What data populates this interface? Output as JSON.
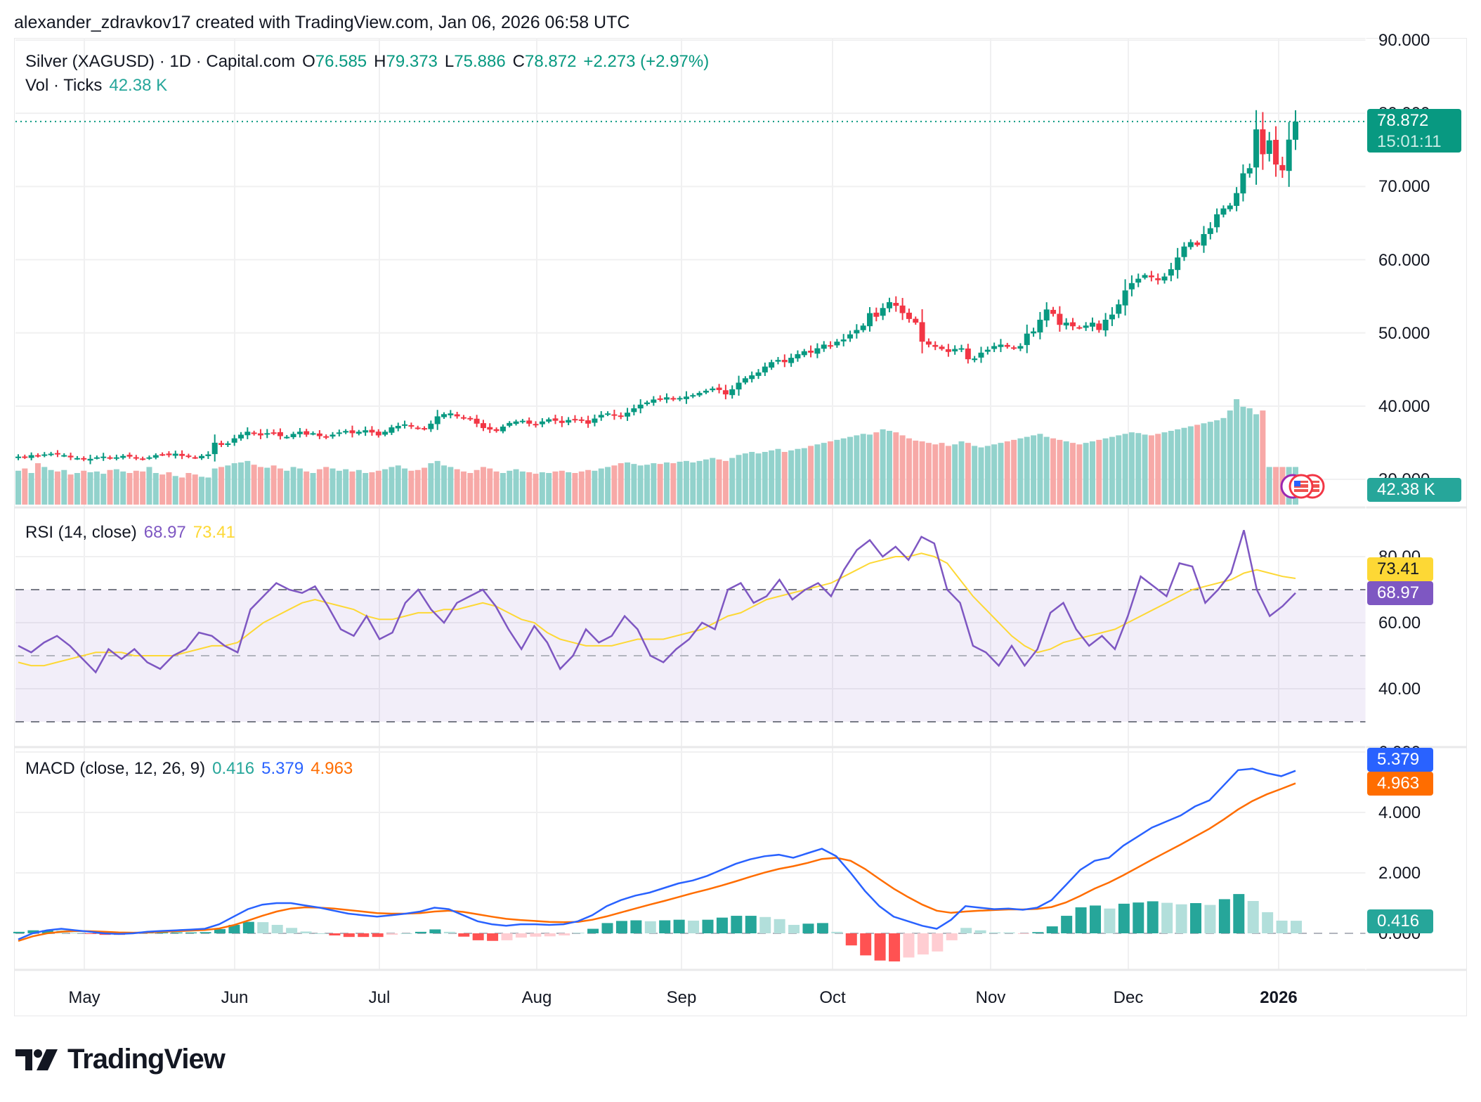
{
  "attribution": "alexander_zdravkov17 created with TradingView.com, Jan 06, 2026 06:58 UTC",
  "symbol_legend": {
    "title": "Silver (XAGUSD) · 1D · Capital.com",
    "o_label": "O",
    "o_value": "76.585",
    "h_label": "H",
    "h_value": "79.373",
    "l_label": "L",
    "l_value": "75.886",
    "c_label": "C",
    "c_value": "78.872",
    "change": "+2.273 (+2.97%)"
  },
  "volume_legend": {
    "title": "Vol · Ticks",
    "value": "42.38 K"
  },
  "rsi_legend": {
    "title": "RSI (14, close)",
    "rsi": "68.97",
    "ma": "73.41"
  },
  "macd_legend": {
    "title": "MACD (close, 12, 26, 9)",
    "hist": "0.416",
    "macd": "5.379",
    "signal": "4.963"
  },
  "price_axis": [
    "90.000",
    "80.000",
    "70.000",
    "60.000",
    "50.000",
    "40.000",
    "30.000"
  ],
  "rsi_axis": [
    "80.00",
    "60.00",
    "40.00"
  ],
  "macd_axis": [
    "6.000",
    "4.000",
    "2.000",
    "0.000"
  ],
  "tags": {
    "last_price": "78.872",
    "countdown": "15:01:11",
    "volume": "42.38 K",
    "rsi_ma": "73.41",
    "rsi": "68.97",
    "macd": "5.379",
    "signal": "4.963",
    "hist": "0.416"
  },
  "time_axis": [
    "May",
    "Jun",
    "Jul",
    "Aug",
    "Sep",
    "Oct",
    "Nov",
    "Dec",
    "2026"
  ],
  "logo_text": "TradingView",
  "colors": {
    "up": "#089981",
    "down": "#f23645",
    "vol_up": "#92d2cc",
    "vol_down": "#f7a9a7",
    "rsi": "#7e57c2",
    "rsi_ma": "#fdd835",
    "rsi_band": "#7e57c2",
    "macd": "#2962ff",
    "signal": "#ff6d00",
    "hist_up_strong": "#26a69a",
    "hist_up_weak": "#b2dfdb",
    "hist_down_strong": "#ff5252",
    "hist_down_weak": "#ffcdd2"
  },
  "chart_data": [
    {
      "type": "candlestick",
      "title": "Silver (XAGUSD) · 1D · Capital.com",
      "ylim": [
        30,
        90
      ],
      "last": 78.872,
      "close": [
        33.1,
        33.0,
        33.3,
        33.2,
        33.4,
        33.5,
        33.4,
        33.3,
        33.0,
        32.9,
        32.7,
        32.8,
        33.0,
        33.1,
        32.9,
        33.0,
        33.2,
        33.1,
        32.9,
        32.8,
        33.0,
        33.3,
        33.4,
        33.3,
        33.5,
        33.2,
        33.1,
        33.0,
        33.2,
        33.4,
        35.0,
        34.7,
        34.9,
        35.6,
        36.1,
        36.5,
        36.2,
        36.0,
        36.3,
        36.4,
        35.9,
        35.8,
        36.2,
        36.5,
        36.1,
        36.3,
        35.9,
        35.7,
        36.1,
        36.4,
        36.6,
        36.3,
        36.5,
        36.7,
        36.4,
        36.0,
        36.5,
        37.1,
        37.3,
        37.5,
        37.2,
        37.0,
        36.9,
        37.6,
        38.6,
        38.9,
        39.0,
        38.6,
        38.4,
        38.2,
        37.6,
        37.0,
        36.8,
        36.6,
        37.2,
        37.7,
        37.9,
        38.0,
        37.6,
        37.4,
        37.9,
        38.2,
        38.0,
        37.7,
        38.1,
        38.2,
        38.0,
        37.6,
        38.3,
        38.8,
        39.0,
        38.7,
        38.6,
        39.1,
        39.7,
        40.2,
        40.5,
        40.9,
        41.0,
        41.2,
        40.9,
        41.1,
        41.3,
        41.5,
        41.8,
        42.1,
        42.4,
        42.2,
        41.6,
        42.3,
        43.2,
        43.8,
        44.2,
        44.6,
        45.4,
        46.0,
        46.3,
        46.0,
        46.6,
        47.1,
        47.5,
        47.3,
        47.9,
        48.4,
        48.3,
        48.8,
        49.1,
        49.8,
        50.4,
        51.0,
        52.7,
        52.2,
        53.4,
        54.2,
        53.7,
        52.7,
        51.9,
        51.4,
        48.8,
        48.4,
        48.1,
        47.8,
        47.4,
        47.8,
        47.9,
        46.4,
        46.5,
        47.3,
        47.7,
        48.2,
        48.4,
        48.1,
        47.9,
        48.2,
        49.9,
        50.2,
        51.8,
        53.2,
        52.6,
        51.1,
        51.4,
        50.9,
        50.7,
        51.0,
        51.4,
        50.4,
        51.8,
        52.5,
        53.9,
        55.8,
        56.8,
        57.4,
        57.9,
        57.6,
        57.2,
        57.7,
        58.7,
        60.3,
        61.8,
        62.4,
        62.0,
        63.5,
        64.3,
        66.2,
        67.0,
        67.4,
        69.1,
        71.8,
        72.5,
        77.8,
        74.4,
        76.3,
        73.0,
        72.2,
        76.4,
        78.87
      ],
      "volume_relative": [
        0.45,
        0.48,
        0.42,
        0.55,
        0.5,
        0.46,
        0.44,
        0.46,
        0.4,
        0.42,
        0.45,
        0.43,
        0.44,
        0.41,
        0.46,
        0.47,
        0.44,
        0.42,
        0.45,
        0.44,
        0.5,
        0.42,
        0.4,
        0.43,
        0.38,
        0.36,
        0.42,
        0.4,
        0.37,
        0.36,
        0.48,
        0.5,
        0.52,
        0.55,
        0.56,
        0.58,
        0.53,
        0.5,
        0.49,
        0.52,
        0.48,
        0.45,
        0.5,
        0.48,
        0.44,
        0.42,
        0.47,
        0.5,
        0.48,
        0.45,
        0.47,
        0.44,
        0.46,
        0.42,
        0.43,
        0.45,
        0.47,
        0.5,
        0.52,
        0.48,
        0.45,
        0.46,
        0.49,
        0.55,
        0.58,
        0.52,
        0.5,
        0.47,
        0.44,
        0.42,
        0.46,
        0.5,
        0.48,
        0.44,
        0.42,
        0.45,
        0.47,
        0.44,
        0.43,
        0.41,
        0.43,
        0.42,
        0.44,
        0.45,
        0.43,
        0.42,
        0.44,
        0.46,
        0.45,
        0.48,
        0.5,
        0.52,
        0.55,
        0.56,
        0.54,
        0.52,
        0.53,
        0.55,
        0.54,
        0.56,
        0.55,
        0.57,
        0.58,
        0.56,
        0.58,
        0.6,
        0.62,
        0.6,
        0.58,
        0.62,
        0.66,
        0.68,
        0.7,
        0.68,
        0.7,
        0.72,
        0.74,
        0.7,
        0.72,
        0.74,
        0.75,
        0.78,
        0.8,
        0.82,
        0.84,
        0.86,
        0.88,
        0.9,
        0.92,
        0.94,
        0.93,
        0.96,
        1.0,
        0.98,
        0.96,
        0.92,
        0.88,
        0.85,
        0.84,
        0.82,
        0.8,
        0.82,
        0.78,
        0.8,
        0.84,
        0.82,
        0.78,
        0.76,
        0.78,
        0.8,
        0.82,
        0.84,
        0.86,
        0.88,
        0.9,
        0.92,
        0.94,
        0.9,
        0.88,
        0.86,
        0.84,
        0.82,
        0.8,
        0.82,
        0.84,
        0.86,
        0.88,
        0.9,
        0.92,
        0.94,
        0.96,
        0.95,
        0.93,
        0.92,
        0.94,
        0.96,
        0.98,
        1.0,
        1.02,
        1.04,
        1.06,
        1.08,
        1.1,
        1.12,
        1.15,
        1.25,
        1.4,
        1.3,
        1.28,
        1.2,
        1.25
      ],
      "volume_last": "42.38 K"
    },
    {
      "type": "line",
      "title": "RSI (14, close)",
      "ylim": [
        30,
        90
      ],
      "bands": {
        "upper": 70,
        "middle": 50,
        "lower": 30
      },
      "rsi_sampled_every_2_bars": [
        53,
        51,
        54,
        56,
        53,
        49,
        45,
        52,
        49,
        52,
        48,
        46,
        50,
        52,
        57,
        56,
        53,
        51,
        64,
        68,
        72,
        70,
        69,
        71,
        65,
        58,
        56,
        62,
        55,
        57,
        66,
        70,
        64,
        60,
        66,
        68,
        70,
        65,
        58,
        52,
        59,
        54,
        46,
        50,
        58,
        54,
        56,
        62,
        58,
        50,
        48,
        52,
        55,
        60,
        58,
        70,
        72,
        66,
        68,
        73,
        67,
        70,
        72,
        68,
        76,
        82,
        85,
        80,
        83,
        79,
        86,
        84,
        70,
        66,
        53,
        51,
        47,
        53,
        47,
        52,
        63,
        66,
        58,
        53,
        56,
        52,
        62,
        74,
        71,
        68,
        78,
        77,
        66,
        70,
        75,
        88,
        70,
        62,
        65,
        69
      ],
      "rsi_ma_sampled_every_2_bars": [
        48,
        47,
        47,
        48,
        49,
        50,
        51,
        51,
        51,
        50,
        50,
        50,
        50,
        51,
        52,
        53,
        53,
        54,
        57,
        60,
        62,
        64,
        66,
        67,
        66,
        65,
        64,
        62,
        61,
        61,
        62,
        63,
        63,
        64,
        64,
        65,
        66,
        65,
        63,
        61,
        60,
        57,
        55,
        54,
        53,
        53,
        53,
        54,
        55,
        55,
        55,
        56,
        57,
        58,
        60,
        62,
        63,
        65,
        67,
        68,
        69,
        70,
        71,
        72,
        74,
        76,
        78,
        79,
        80,
        80,
        81,
        80,
        78,
        73,
        68,
        64,
        60,
        56,
        53,
        51,
        52,
        54,
        55,
        56,
        57,
        58,
        60,
        62,
        64,
        66,
        68,
        70,
        71,
        72,
        73,
        75,
        76,
        75,
        74,
        73.41
      ]
    },
    {
      "type": "line+bar",
      "title": "MACD (close, 12, 26, 9)",
      "ylim": [
        -0.9,
        6.0
      ],
      "macd_sampled_every_2_bars": [
        -0.2,
        0.0,
        0.1,
        0.15,
        0.1,
        0.05,
        0.0,
        -0.02,
        0.0,
        0.05,
        0.08,
        0.1,
        0.12,
        0.15,
        0.3,
        0.55,
        0.8,
        0.95,
        1.0,
        1.0,
        0.92,
        0.85,
        0.75,
        0.65,
        0.6,
        0.55,
        0.6,
        0.65,
        0.72,
        0.85,
        0.8,
        0.6,
        0.4,
        0.3,
        0.25,
        0.3,
        0.3,
        0.28,
        0.3,
        0.4,
        0.6,
        0.9,
        1.1,
        1.25,
        1.35,
        1.5,
        1.65,
        1.75,
        1.9,
        2.1,
        2.3,
        2.45,
        2.55,
        2.6,
        2.5,
        2.65,
        2.8,
        2.55,
        2.0,
        1.4,
        0.9,
        0.55,
        0.4,
        0.25,
        0.15,
        0.45,
        0.9,
        0.85,
        0.8,
        0.82,
        0.78,
        0.85,
        1.1,
        1.6,
        2.1,
        2.4,
        2.5,
        2.9,
        3.2,
        3.5,
        3.7,
        3.9,
        4.2,
        4.4,
        4.9,
        5.4,
        5.45,
        5.3,
        5.2,
        5.379
      ],
      "signal_sampled_every_2_bars": [
        -0.25,
        -0.1,
        0.0,
        0.05,
        0.08,
        0.07,
        0.05,
        0.03,
        0.02,
        0.03,
        0.05,
        0.07,
        0.09,
        0.11,
        0.16,
        0.27,
        0.42,
        0.58,
        0.72,
        0.82,
        0.86,
        0.85,
        0.82,
        0.77,
        0.72,
        0.67,
        0.65,
        0.65,
        0.67,
        0.72,
        0.75,
        0.71,
        0.63,
        0.55,
        0.48,
        0.44,
        0.41,
        0.38,
        0.37,
        0.38,
        0.45,
        0.56,
        0.69,
        0.82,
        0.95,
        1.07,
        1.2,
        1.33,
        1.45,
        1.58,
        1.72,
        1.87,
        2.01,
        2.13,
        2.22,
        2.33,
        2.46,
        2.5,
        2.4,
        2.13,
        1.8,
        1.48,
        1.2,
        0.95,
        0.75,
        0.68,
        0.72,
        0.75,
        0.77,
        0.79,
        0.79,
        0.81,
        0.87,
        1.02,
        1.24,
        1.48,
        1.68,
        1.92,
        2.18,
        2.44,
        2.69,
        2.94,
        3.2,
        3.46,
        3.77,
        4.1,
        4.38,
        4.6,
        4.78,
        4.963
      ],
      "histogram_last": 0.416
    }
  ]
}
